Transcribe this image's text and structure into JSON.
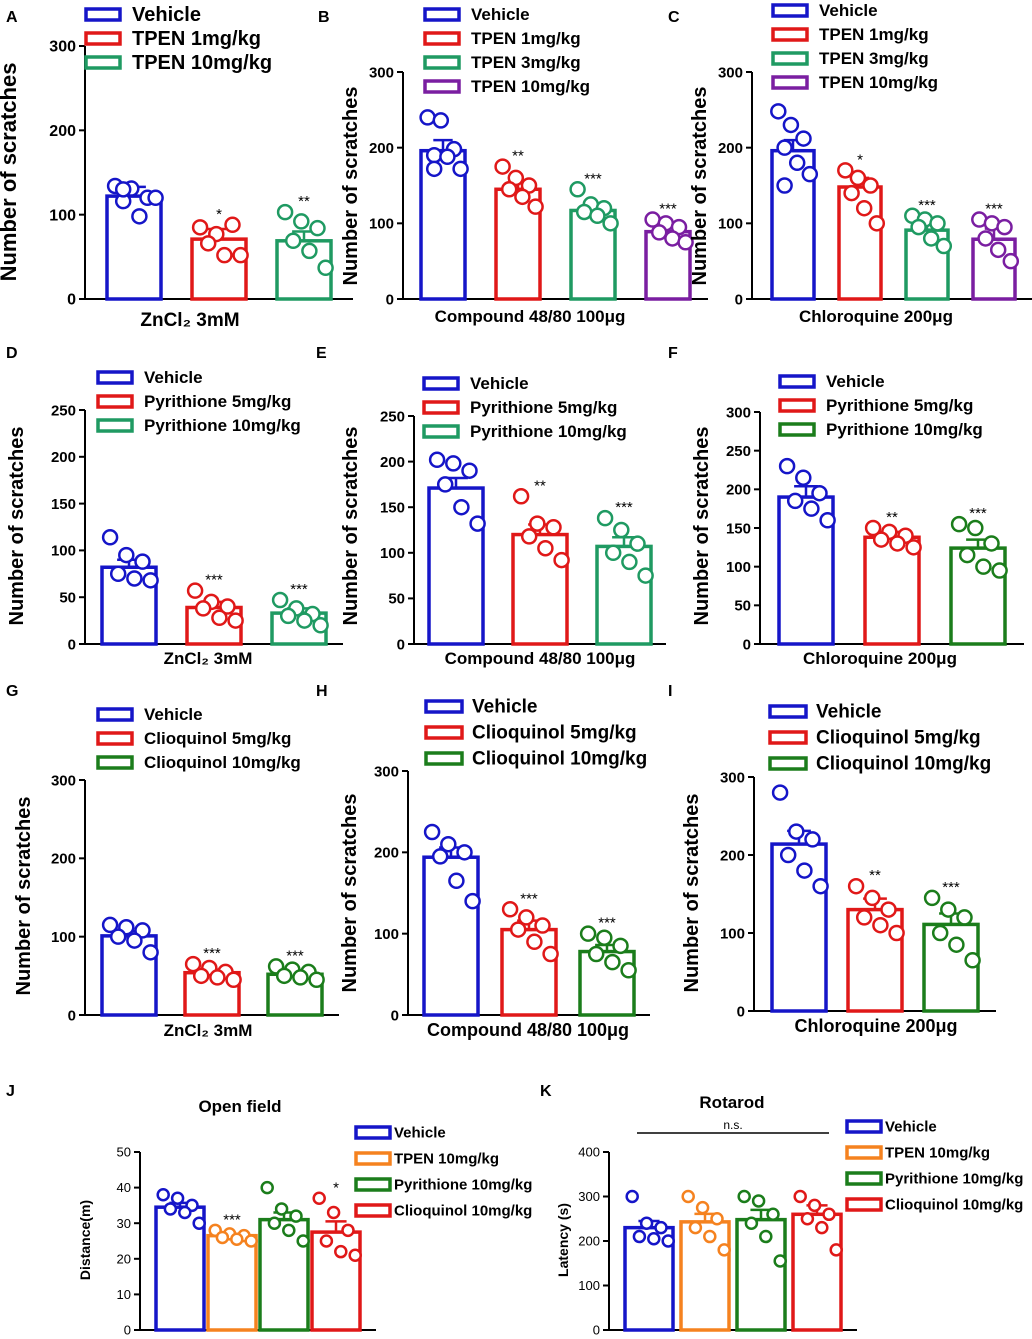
{
  "colors": {
    "blue": "#1515c8",
    "red": "#e01818",
    "green": "#1f9a62",
    "darkgreen": "#1b7d1b",
    "purple": "#7a1ea1",
    "orange": "#f5821f"
  },
  "chart_data": [
    {
      "id": "A",
      "letter": "A",
      "type": "bar",
      "title": "",
      "ylabel": "Number of scratches",
      "xlabel": "ZnCl₂ 3mM",
      "ylim": [
        0,
        300
      ],
      "ticks": [
        0,
        100,
        200,
        300
      ],
      "series": [
        {
          "name": "Vehicle",
          "color": "blue",
          "value": 122,
          "sem": 11,
          "sig": "",
          "points": [
            134,
            131,
            120,
            116,
            98,
            120,
            130
          ]
        },
        {
          "name": "TPEN 1mg/kg",
          "color": "red",
          "value": 71,
          "sem": 12,
          "sig": "*",
          "points": [
            85,
            77,
            88,
            66,
            52,
            52
          ]
        },
        {
          "name": "TPEN 10mg/kg",
          "color": "green",
          "value": 69,
          "sem": 11,
          "sig": "**",
          "points": [
            103,
            92,
            84,
            69,
            57,
            37
          ]
        }
      ]
    },
    {
      "id": "B",
      "letter": "B",
      "type": "bar",
      "title": "",
      "ylabel": "Number of scratches",
      "xlabel": "Compound 48/80  100μg",
      "ylim": [
        0,
        300
      ],
      "ticks": [
        0,
        100,
        200,
        300
      ],
      "series": [
        {
          "name": "Vehicle",
          "color": "blue",
          "value": 196,
          "sem": 14,
          "sig": "",
          "points": [
            240,
            236,
            198,
            190,
            188,
            172,
            172
          ]
        },
        {
          "name": "TPEN 1mg/kg",
          "color": "red",
          "value": 145,
          "sem": 10,
          "sig": "**",
          "points": [
            175,
            160,
            150,
            145,
            135,
            122
          ]
        },
        {
          "name": "TPEN 3mg/kg",
          "color": "green",
          "value": 117,
          "sem": 8,
          "sig": "***",
          "points": [
            145,
            125,
            120,
            115,
            110,
            100
          ]
        },
        {
          "name": "TPEN 10mg/kg",
          "color": "purple",
          "value": 89,
          "sem": 6,
          "sig": "***",
          "points": [
            105,
            100,
            95,
            88,
            80,
            75
          ]
        }
      ]
    },
    {
      "id": "C",
      "letter": "C",
      "type": "bar",
      "title": "",
      "ylabel": "Number of scratches",
      "xlabel": "Chloroquine  200μg",
      "ylim": [
        0,
        300
      ],
      "ticks": [
        0,
        100,
        200,
        300
      ],
      "series": [
        {
          "name": "Vehicle",
          "color": "blue",
          "value": 196,
          "sem": 14,
          "sig": "",
          "points": [
            248,
            230,
            212,
            200,
            180,
            165,
            150
          ]
        },
        {
          "name": "TPEN 1mg/kg",
          "color": "red",
          "value": 148,
          "sem": 12,
          "sig": "*",
          "points": [
            170,
            160,
            150,
            140,
            120,
            100
          ]
        },
        {
          "name": "TPEN 3mg/kg",
          "color": "green",
          "value": 91,
          "sem": 11,
          "sig": "***",
          "points": [
            110,
            105,
            100,
            95,
            80,
            70
          ]
        },
        {
          "name": "TPEN 10mg/kg",
          "color": "purple",
          "value": 79,
          "sem": 14,
          "sig": "***",
          "points": [
            105,
            100,
            95,
            80,
            65,
            50
          ]
        }
      ]
    },
    {
      "id": "D",
      "letter": "D",
      "type": "bar",
      "title": "",
      "ylabel": "Number of scratches",
      "xlabel": "ZnCl₂ 3mM",
      "ylim": [
        0,
        250
      ],
      "ticks": [
        0,
        50,
        100,
        150,
        200,
        250
      ],
      "series": [
        {
          "name": "Vehicle",
          "color": "blue",
          "value": 82,
          "sem": 8,
          "sig": "",
          "points": [
            114,
            95,
            88,
            75,
            70,
            68
          ]
        },
        {
          "name": "Pyrithione 5mg/kg",
          "color": "red",
          "value": 39,
          "sem": 6,
          "sig": "***",
          "points": [
            57,
            45,
            40,
            38,
            28,
            25
          ]
        },
        {
          "name": "Pyrithione 10mg/kg",
          "color": "green",
          "value": 33,
          "sem": 5,
          "sig": "***",
          "points": [
            47,
            38,
            32,
            30,
            25,
            20
          ]
        }
      ]
    },
    {
      "id": "E",
      "letter": "E",
      "type": "bar",
      "title": "",
      "ylabel": "Number of scratches",
      "xlabel": "Compound 48/80  100μg",
      "ylim": [
        0,
        250
      ],
      "ticks": [
        0,
        50,
        100,
        150,
        200,
        250
      ],
      "series": [
        {
          "name": "Vehicle",
          "color": "blue",
          "value": 171,
          "sem": 11,
          "sig": "",
          "points": [
            202,
            198,
            190,
            175,
            150,
            132
          ]
        },
        {
          "name": "Pyrithione 5mg/kg",
          "color": "red",
          "value": 120,
          "sem": 11,
          "sig": "**",
          "points": [
            162,
            132,
            128,
            118,
            105,
            92
          ]
        },
        {
          "name": "Pyrithione 10mg/kg",
          "color": "green",
          "value": 107,
          "sem": 10,
          "sig": "***",
          "points": [
            138,
            125,
            110,
            100,
            90,
            75
          ]
        }
      ]
    },
    {
      "id": "F",
      "letter": "F",
      "type": "bar",
      "title": "",
      "ylabel": "Number of scratches",
      "xlabel": "Chloroquine 200μg",
      "ylim": [
        0,
        300
      ],
      "ticks": [
        0,
        50,
        100,
        150,
        200,
        250,
        300
      ],
      "series": [
        {
          "name": "Vehicle",
          "color": "blue",
          "value": 190,
          "sem": 14,
          "sig": "",
          "points": [
            230,
            215,
            195,
            185,
            175,
            160
          ]
        },
        {
          "name": "Pyrithione 5mg/kg",
          "color": "red",
          "value": 138,
          "sem": 7,
          "sig": "**",
          "points": [
            150,
            145,
            140,
            135,
            130,
            125
          ]
        },
        {
          "name": "Pyrithione 10mg/kg",
          "color": "darkgreen",
          "value": 124,
          "sem": 11,
          "sig": "***",
          "points": [
            155,
            150,
            130,
            115,
            100,
            95
          ]
        }
      ]
    },
    {
      "id": "G",
      "letter": "G",
      "type": "bar",
      "title": "",
      "ylabel": "Number of scratches",
      "xlabel": "ZnCl₂ 3mM",
      "ylim": [
        0,
        300
      ],
      "ticks": [
        0,
        100,
        200,
        300
      ],
      "series": [
        {
          "name": "Vehicle",
          "color": "blue",
          "value": 101,
          "sem": 6,
          "sig": "",
          "points": [
            115,
            112,
            108,
            100,
            95,
            80
          ]
        },
        {
          "name": "Clioquinol  5mg/kg",
          "color": "red",
          "value": 54,
          "sem": 4,
          "sig": "***",
          "points": [
            65,
            60,
            55,
            50,
            48,
            45
          ]
        },
        {
          "name": "Clioquinol  10mg/kg",
          "color": "darkgreen",
          "value": 52,
          "sem": 3,
          "sig": "***",
          "points": [
            62,
            58,
            55,
            50,
            48,
            45
          ]
        }
      ]
    },
    {
      "id": "H",
      "letter": "H",
      "type": "bar",
      "title": "",
      "ylabel": "Number of scratches",
      "xlabel": "Compound 48/80  100μg",
      "ylim": [
        0,
        300
      ],
      "ticks": [
        0,
        100,
        200,
        300
      ],
      "series": [
        {
          "name": "Vehicle",
          "color": "blue",
          "value": 194,
          "sem": 12,
          "sig": "",
          "points": [
            225,
            210,
            200,
            195,
            165,
            140
          ]
        },
        {
          "name": "Clioquinol  5mg/kg",
          "color": "red",
          "value": 105,
          "sem": 11,
          "sig": "***",
          "points": [
            130,
            120,
            110,
            105,
            90,
            75
          ]
        },
        {
          "name": "Clioquinol  10mg/kg",
          "color": "darkgreen",
          "value": 78,
          "sem": 8,
          "sig": "***",
          "points": [
            100,
            95,
            85,
            75,
            65,
            55
          ]
        }
      ]
    },
    {
      "id": "I",
      "letter": "I",
      "type": "bar",
      "title": "",
      "ylabel": "Number of scratches",
      "xlabel": "Chloroquine  200μg",
      "ylim": [
        0,
        300
      ],
      "ticks": [
        0,
        100,
        200,
        300
      ],
      "series": [
        {
          "name": "Vehicle",
          "color": "blue",
          "value": 214,
          "sem": 17,
          "sig": "",
          "points": [
            280,
            230,
            220,
            200,
            180,
            160
          ]
        },
        {
          "name": "Clioquinol  5mg/kg",
          "color": "red",
          "value": 130,
          "sem": 14,
          "sig": "**",
          "points": [
            160,
            145,
            130,
            120,
            110,
            100
          ]
        },
        {
          "name": "Clioquinol  10mg/kg",
          "color": "darkgreen",
          "value": 111,
          "sem": 14,
          "sig": "***",
          "points": [
            145,
            130,
            120,
            100,
            85,
            65
          ]
        }
      ]
    },
    {
      "id": "J",
      "letter": "J",
      "type": "bar",
      "title": "Open field",
      "ylabel": "Distance(m)",
      "xlabel": "",
      "ylim": [
        0,
        50
      ],
      "ticks": [
        0,
        10,
        20,
        30,
        40,
        50
      ],
      "series": [
        {
          "name": "Vehicle",
          "color": "blue",
          "value": 34.5,
          "sem": 1.2,
          "sig": "",
          "points": [
            38,
            37,
            35,
            34,
            33,
            30
          ]
        },
        {
          "name": "TPEN 10mg/kg",
          "color": "orange",
          "value": 26.5,
          "sem": 0.5,
          "sig": "***",
          "points": [
            28,
            27,
            26.5,
            26,
            25.5,
            25
          ]
        },
        {
          "name": "Pyrithione 10mg/kg",
          "color": "darkgreen",
          "value": 31,
          "sem": 2,
          "sig": "",
          "points": [
            40,
            34,
            32,
            30,
            28,
            25
          ]
        },
        {
          "name": "Clioquinol 10mg/kg",
          "color": "red",
          "value": 27.5,
          "sem": 3,
          "sig": "*",
          "points": [
            37,
            33,
            28,
            25,
            22,
            21
          ]
        }
      ]
    },
    {
      "id": "K",
      "letter": "K",
      "type": "bar",
      "title": "Rotarod",
      "ylabel": "Latency (s)",
      "xlabel": "",
      "ylim": [
        0,
        400
      ],
      "ticks": [
        0,
        100,
        200,
        300,
        400
      ],
      "annotation": "n.s.",
      "series": [
        {
          "name": "Vehicle",
          "color": "blue",
          "value": 230,
          "sem": 15,
          "sig": "",
          "points": [
            300,
            240,
            230,
            210,
            205,
            200
          ]
        },
        {
          "name": "TPEN 10mg/kg",
          "color": "orange",
          "value": 243,
          "sem": 18,
          "sig": "",
          "points": [
            300,
            275,
            250,
            230,
            210,
            180
          ]
        },
        {
          "name": "Pyrithione 10mg/kg",
          "color": "darkgreen",
          "value": 248,
          "sem": 22,
          "sig": "",
          "points": [
            300,
            290,
            260,
            240,
            210,
            155
          ]
        },
        {
          "name": "Clioquinol 10mg/kg",
          "color": "red",
          "value": 260,
          "sem": 20,
          "sig": "",
          "points": [
            300,
            280,
            260,
            250,
            230,
            180
          ]
        }
      ]
    }
  ]
}
